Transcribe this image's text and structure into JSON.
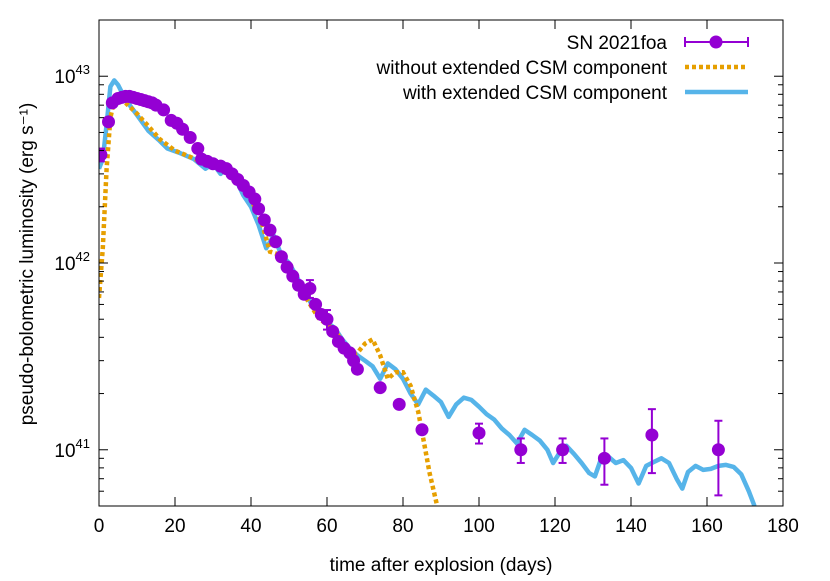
{
  "chart_data": {
    "type": "scatter",
    "xlabel": "time after explosion (days)",
    "ylabel": "pseudo-bolometric luminosity (erg s⁻¹)",
    "xlim": [
      0,
      180
    ],
    "ylim": [
      5e+40,
      2e+43
    ],
    "yscale": "log",
    "grid": false,
    "legend_position": "top-right",
    "x_ticks": [
      "0",
      "20",
      "40",
      "60",
      "80",
      "100",
      "120",
      "140",
      "160",
      "180"
    ],
    "y_ticks": [
      {
        "base": "10",
        "exp": "41",
        "value": 1e+41
      },
      {
        "base": "10",
        "exp": "42",
        "value": 1e+42
      },
      {
        "base": "10",
        "exp": "43",
        "value": 1e+43
      }
    ],
    "series": [
      {
        "name": "SN 2021foa",
        "style": "points-errorbars",
        "color": "#9400d3",
        "points": [
          {
            "x": 0.5,
            "y": 3.8e+42,
            "err": 3e+41
          },
          {
            "x": 2.5,
            "y": 5.7e+42
          },
          {
            "x": 3.5,
            "y": 7.2e+42
          },
          {
            "x": 5.0,
            "y": 7.6e+42
          },
          {
            "x": 6.0,
            "y": 7.7e+42
          },
          {
            "x": 7.0,
            "y": 7.8e+42
          },
          {
            "x": 8.0,
            "y": 7.8e+42
          },
          {
            "x": 9.0,
            "y": 7.7e+42
          },
          {
            "x": 10.0,
            "y": 7.6e+42
          },
          {
            "x": 11.0,
            "y": 7.5e+42
          },
          {
            "x": 12.0,
            "y": 7.4e+42
          },
          {
            "x": 13.0,
            "y": 7.3e+42
          },
          {
            "x": 14.0,
            "y": 7.2e+42
          },
          {
            "x": 15.0,
            "y": 7e+42
          },
          {
            "x": 17.0,
            "y": 6.6e+42
          },
          {
            "x": 19.0,
            "y": 5.8e+42
          },
          {
            "x": 20.5,
            "y": 5.6e+42
          },
          {
            "x": 22.0,
            "y": 5.2e+42
          },
          {
            "x": 24.0,
            "y": 4.7e+42
          },
          {
            "x": 26.0,
            "y": 4.1e+42
          },
          {
            "x": 27.0,
            "y": 3.6e+42
          },
          {
            "x": 28.5,
            "y": 3.5e+42
          },
          {
            "x": 30.0,
            "y": 3.4e+42
          },
          {
            "x": 32.0,
            "y": 3.3e+42
          },
          {
            "x": 33.5,
            "y": 3.2e+42
          },
          {
            "x": 35.0,
            "y": 3e+42
          },
          {
            "x": 36.5,
            "y": 2.8e+42
          },
          {
            "x": 38.0,
            "y": 2.6e+42
          },
          {
            "x": 39.5,
            "y": 2.4e+42
          },
          {
            "x": 41.0,
            "y": 2.2e+42
          },
          {
            "x": 42.0,
            "y": 1.95e+42
          },
          {
            "x": 43.5,
            "y": 1.7e+42
          },
          {
            "x": 45.0,
            "y": 1.5e+42
          },
          {
            "x": 46.5,
            "y": 1.3e+42
          },
          {
            "x": 48.0,
            "y": 1.08e+42
          },
          {
            "x": 49.5,
            "y": 9.5e+41
          },
          {
            "x": 51.0,
            "y": 8.5e+41
          },
          {
            "x": 52.5,
            "y": 7.6e+41
          },
          {
            "x": 54.0,
            "y": 6.8e+41
          },
          {
            "x": 55.5,
            "y": 7.3e+41,
            "err": 8e+40
          },
          {
            "x": 57.0,
            "y": 6e+41
          },
          {
            "x": 58.5,
            "y": 5.3e+41
          },
          {
            "x": 60.0,
            "y": 5e+41,
            "err": 6e+40
          },
          {
            "x": 61.5,
            "y": 4.3e+41
          },
          {
            "x": 63.0,
            "y": 3.8e+41
          },
          {
            "x": 64.5,
            "y": 3.5e+41
          },
          {
            "x": 66.0,
            "y": 3.3e+41
          },
          {
            "x": 67.0,
            "y": 3e+41
          },
          {
            "x": 68.0,
            "y": 2.7e+41
          },
          {
            "x": 74.0,
            "y": 2.15e+41
          },
          {
            "x": 79.0,
            "y": 1.75e+41
          },
          {
            "x": 85.0,
            "y": 1.28e+41
          },
          {
            "x": 100.0,
            "y": 1.23e+41,
            "err": 1.5e+40
          },
          {
            "x": 111.0,
            "y": 1e+41,
            "err": 1.5e+40
          },
          {
            "x": 122.0,
            "y": 1e+41,
            "err": 1.5e+40
          },
          {
            "x": 133.0,
            "y": 9e+40,
            "err": 2.5e+40
          },
          {
            "x": 145.5,
            "y": 1.2e+41,
            "err": 4.5e+40
          },
          {
            "x": 163.0,
            "y": 1e+41,
            "err": 4.3e+40
          }
        ]
      },
      {
        "name": "without extended CSM component",
        "style": "dotted-line",
        "color": "#e69f00",
        "points": [
          [
            0,
            6.5e+41
          ],
          [
            1.0,
            1.2e+42
          ],
          [
            2.0,
            3.2e+42
          ],
          [
            3.0,
            6e+42
          ],
          [
            4.0,
            7.4e+42
          ],
          [
            5.0,
            7.5e+42
          ],
          [
            7.0,
            7.2e+42
          ],
          [
            10.0,
            6.3e+42
          ],
          [
            13.0,
            5.4e+42
          ],
          [
            16.0,
            4.6e+42
          ],
          [
            20.0,
            4e+42
          ],
          [
            24.0,
            3.7e+42
          ],
          [
            28.0,
            3.4e+42
          ],
          [
            32.0,
            3.2e+42
          ],
          [
            36.0,
            2.9e+42
          ],
          [
            40.0,
            2.2e+42
          ],
          [
            43.0,
            1.6e+42
          ],
          [
            45.0,
            1.15e+42
          ],
          [
            48.0,
            1.1e+42
          ],
          [
            50.0,
            9e+41
          ],
          [
            53.0,
            7.3e+41
          ],
          [
            56.0,
            5.8e+41
          ],
          [
            58.0,
            5e+41
          ],
          [
            60.0,
            4.7e+41
          ],
          [
            62.0,
            4.4e+41
          ],
          [
            64.0,
            3.8e+41
          ],
          [
            66.0,
            3.2e+41
          ],
          [
            68.0,
            3.3e+41
          ],
          [
            70.0,
            3.7e+41
          ],
          [
            72.0,
            3.9e+41
          ],
          [
            74.0,
            3.2e+41
          ],
          [
            76.0,
            2.4e+41
          ],
          [
            78.0,
            2.6e+41
          ],
          [
            80.0,
            2.6e+41
          ],
          [
            82.0,
            2.2e+41
          ],
          [
            84.0,
            1.6e+41
          ],
          [
            85.5,
            1.1e+41
          ],
          [
            87.0,
            7.5e+40
          ],
          [
            89.0,
            5e+40
          ]
        ]
      },
      {
        "name": "with extended CSM component",
        "style": "line",
        "color": "#56b4e9",
        "points": [
          [
            0,
            3.2e+42
          ],
          [
            1.0,
            3.6e+42
          ],
          [
            2.0,
            5.5e+42
          ],
          [
            3.0,
            8.8e+42
          ],
          [
            4.0,
            9.5e+42
          ],
          [
            5.0,
            9e+42
          ],
          [
            7.0,
            7.5e+42
          ],
          [
            10.0,
            6.2e+42
          ],
          [
            13.0,
            5.1e+42
          ],
          [
            16.0,
            4.5e+42
          ],
          [
            18.0,
            4.1e+42
          ],
          [
            21.0,
            3.9e+42
          ],
          [
            25.0,
            3.6e+42
          ],
          [
            28.0,
            3.2e+42
          ],
          [
            30.0,
            3.4e+42
          ],
          [
            32.0,
            3e+42
          ],
          [
            34.0,
            3.3e+42
          ],
          [
            36.0,
            2.8e+42
          ],
          [
            38.0,
            2.3e+42
          ],
          [
            40.0,
            2e+42
          ],
          [
            42.0,
            1.6e+42
          ],
          [
            44.0,
            1.2e+42
          ],
          [
            46.0,
            1.4e+42
          ],
          [
            48.0,
            1.1e+42
          ],
          [
            50.0,
            1e+42
          ],
          [
            52.0,
            8.5e+41
          ],
          [
            54.0,
            7e+41
          ],
          [
            56.0,
            6e+41
          ],
          [
            58.0,
            5.2e+41
          ],
          [
            60.0,
            4.8e+41
          ],
          [
            62.0,
            4.5e+41
          ],
          [
            64.0,
            3.9e+41
          ],
          [
            66.0,
            3.5e+41
          ],
          [
            68.0,
            3.2e+41
          ],
          [
            70.0,
            3e+41
          ],
          [
            72.0,
            2.8e+41
          ],
          [
            74.0,
            2.4e+41
          ],
          [
            76.0,
            2.9e+41
          ],
          [
            78.0,
            2.7e+41
          ],
          [
            80.0,
            2.4e+41
          ],
          [
            82.0,
            2e+41
          ],
          [
            84.0,
            1.75e+41
          ],
          [
            86.0,
            2.1e+41
          ],
          [
            88.0,
            1.95e+41
          ],
          [
            90.0,
            1.8e+41
          ],
          [
            92.0,
            1.5e+41
          ],
          [
            94.0,
            1.75e+41
          ],
          [
            96.0,
            1.9e+41
          ],
          [
            98.0,
            1.85e+41
          ],
          [
            100.0,
            1.7e+41
          ],
          [
            102.0,
            1.55e+41
          ],
          [
            104.0,
            1.45e+41
          ],
          [
            106.0,
            1.3e+41
          ],
          [
            108.0,
            1.2e+41
          ],
          [
            110.0,
            1.08e+41
          ],
          [
            112.0,
            1.28e+41
          ],
          [
            114.0,
            1.2e+41
          ],
          [
            116.0,
            1.12e+41
          ],
          [
            118.0,
            1e+41
          ],
          [
            119.5,
            8.5e+40
          ],
          [
            121.0,
            9.5e+40
          ],
          [
            123.0,
            1.05e+41
          ],
          [
            125.0,
            9.5e+40
          ],
          [
            127.0,
            8.5e+40
          ],
          [
            129.0,
            7.5e+40
          ],
          [
            130.5,
            7.2e+40
          ],
          [
            132.0,
            8.8e+40
          ],
          [
            134.0,
            9.2e+40
          ],
          [
            136.0,
            8.5e+40
          ],
          [
            138.0,
            8.8e+40
          ],
          [
            140.0,
            8e+40
          ],
          [
            142.0,
            6.6e+40
          ],
          [
            144.0,
            8.2e+40
          ],
          [
            146.0,
            8.6e+40
          ],
          [
            148.0,
            9e+40
          ],
          [
            150.0,
            8.5e+40
          ],
          [
            152.0,
            7e+40
          ],
          [
            153.5,
            6.2e+40
          ],
          [
            155.0,
            7.6e+40
          ],
          [
            157.0,
            8.2e+40
          ],
          [
            159.0,
            7.8e+40
          ],
          [
            161.0,
            7.9e+40
          ],
          [
            163.0,
            8.2e+40
          ],
          [
            165.0,
            8.3e+40
          ],
          [
            167.0,
            8.1e+40
          ],
          [
            169.0,
            7.4e+40
          ],
          [
            171.0,
            6e+40
          ],
          [
            172.5,
            5e+40
          ]
        ]
      }
    ]
  }
}
